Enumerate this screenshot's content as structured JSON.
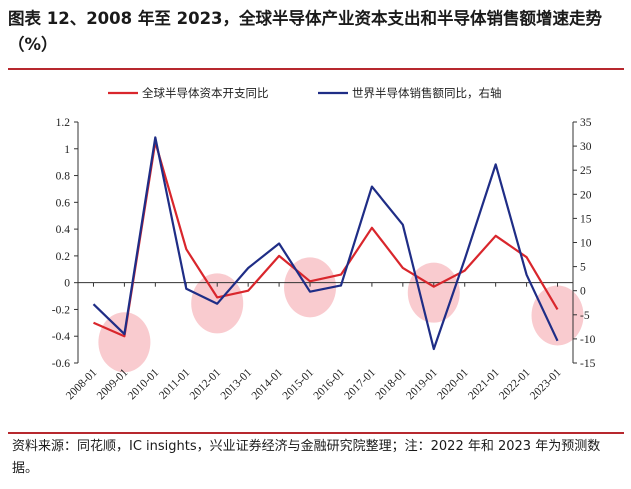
{
  "header": {
    "title": "图表 12、2008 年至 2023，全球半导体产业资本支出和半导体销售额增速走势（%）"
  },
  "footer": {
    "source": "资料来源：同花顺，IC insights，兴业证券经济与金融研究院整理；注：2022 年和 2023 年为预测数据。"
  },
  "colors": {
    "series_left": "#d9262c",
    "series_right": "#1f2d86",
    "highlight": "#f7b9bf",
    "rule": "#b7282e"
  },
  "chart_data": {
    "type": "line",
    "categories": [
      "2008-01",
      "2009-01",
      "2010-01",
      "2011-01",
      "2012-01",
      "2013-01",
      "2014-01",
      "2015-01",
      "2016-01",
      "2017-01",
      "2018-01",
      "2019-01",
      "2020-01",
      "2021-01",
      "2022-01",
      "2023-01"
    ],
    "series": [
      {
        "name": "全球半导体资本开支同比",
        "axis": "left",
        "values": [
          -0.3,
          -0.4,
          1.05,
          0.25,
          -0.11,
          -0.06,
          0.2,
          0.01,
          0.06,
          0.41,
          0.11,
          -0.03,
          0.09,
          0.35,
          0.19,
          -0.2
        ]
      },
      {
        "name": "世界半导体销售额同比，右轴",
        "axis": "right",
        "values": [
          -2.8,
          -9.0,
          31.8,
          0.4,
          -2.7,
          4.7,
          9.8,
          -0.2,
          1.1,
          21.6,
          13.7,
          -12.1,
          6.5,
          26.2,
          3.3,
          -10.4
        ]
      }
    ],
    "y_left": {
      "min": -0.6,
      "max": 1.2,
      "ticks": [
        -0.6,
        -0.4,
        -0.2,
        0,
        0.2,
        0.4,
        0.6,
        0.8,
        1,
        1.2
      ],
      "tick_labels": [
        "-0.6",
        "-0.4",
        "-0.2",
        "0",
        "0.2",
        "0.4",
        "0.6",
        "0.8",
        "1",
        "1.2"
      ]
    },
    "y_right": {
      "min": -15,
      "max": 35,
      "ticks": [
        -15,
        -10,
        -5,
        0,
        5,
        10,
        15,
        20,
        25,
        30,
        35
      ],
      "tick_labels": [
        "-15",
        "-10",
        "-5",
        "0",
        "5",
        "10",
        "15",
        "20",
        "25",
        "30",
        "35"
      ]
    },
    "highlight_categories": [
      "2009-01",
      "2012-01",
      "2015-01",
      "2019-01",
      "2023-01"
    ],
    "grid": false,
    "legend_position": "top"
  }
}
